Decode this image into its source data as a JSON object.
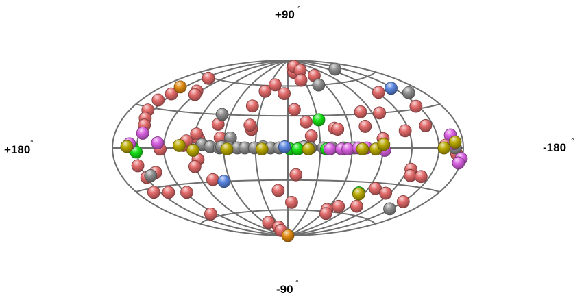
{
  "chart_data": {
    "type": "scatter",
    "projection": "Aitoff/Hammer all-sky, galactic coordinates",
    "longitude_range": [
      180,
      -180
    ],
    "latitude_range": [
      -90,
      90
    ],
    "grid": true,
    "labels": {
      "top": "+90",
      "bottom": "-90",
      "left": "+180",
      "right": "-180",
      "degree": "°"
    },
    "colors": {
      "red": "#e26a6a",
      "gray": "#8c8c8c",
      "green": "#16e016",
      "magenta": "#d860e0",
      "olive": "#b8a800",
      "blue": "#5a86e0",
      "orange": "#e08a10"
    },
    "points": [
      {
        "l": 64,
        "b": 9,
        "c": "red"
      },
      {
        "l": 143,
        "b": 59,
        "c": "red"
      },
      {
        "l": 152,
        "b": 42,
        "c": "red"
      },
      {
        "l": 32,
        "b": 54,
        "c": "red"
      },
      {
        "l": -20,
        "b": 80,
        "c": "red"
      },
      {
        "l": -17,
        "b": 75,
        "c": "red"
      },
      {
        "l": -30,
        "b": 82,
        "c": "red"
      },
      {
        "l": -40,
        "b": 77,
        "c": "red"
      },
      {
        "l": -60,
        "b": 70,
        "c": "red"
      },
      {
        "l": -25,
        "b": 66,
        "c": "red"
      },
      {
        "l": 21,
        "b": 61,
        "c": "red"
      },
      {
        "l": 5,
        "b": 52,
        "c": "red"
      },
      {
        "l": 125,
        "b": 48,
        "c": "red"
      },
      {
        "l": 121,
        "b": 45,
        "c": "red"
      },
      {
        "l": 158,
        "b": 36,
        "c": "red"
      },
      {
        "l": 157,
        "b": 28,
        "c": "red"
      },
      {
        "l": 152,
        "b": 22,
        "c": "red"
      },
      {
        "l": 40,
        "b": 39,
        "c": "red"
      },
      {
        "l": -7,
        "b": 36,
        "c": "red"
      },
      {
        "l": -78,
        "b": 32,
        "c": "red"
      },
      {
        "l": -98,
        "b": 30,
        "c": "red"
      },
      {
        "l": -147,
        "b": 32,
        "c": "red"
      },
      {
        "l": -18,
        "b": 24,
        "c": "red"
      },
      {
        "l": 35,
        "b": 17,
        "c": "red"
      },
      {
        "l": 37,
        "b": 21,
        "c": "red"
      },
      {
        "l": 69,
        "b": 21,
        "c": "red"
      },
      {
        "l": -22,
        "b": 11,
        "c": "red"
      },
      {
        "l": -45,
        "b": 18,
        "c": "red"
      },
      {
        "l": -48,
        "b": 17,
        "c": "red"
      },
      {
        "l": -76,
        "b": 19,
        "c": "red"
      },
      {
        "l": -116,
        "b": 14,
        "c": "red"
      },
      {
        "l": -141,
        "b": 17,
        "c": "red"
      },
      {
        "l": 148,
        "b": 17,
        "c": "red"
      },
      {
        "l": 85,
        "b": 8,
        "c": "red"
      },
      {
        "l": 88,
        "b": 12,
        "c": "red"
      },
      {
        "l": 124,
        "b": -1,
        "c": "red"
      },
      {
        "l": 86,
        "b": -10,
        "c": "red"
      },
      {
        "l": 91,
        "b": -16,
        "c": "red"
      },
      {
        "l": 153,
        "b": -13,
        "c": "red"
      },
      {
        "l": 136,
        "b": -19,
        "c": "red"
      },
      {
        "l": 150,
        "b": -22,
        "c": "red"
      },
      {
        "l": 78,
        "b": -28,
        "c": "red"
      },
      {
        "l": -8,
        "b": -25,
        "c": "red"
      },
      {
        "l": -124,
        "b": -17,
        "c": "red"
      },
      {
        "l": -127,
        "b": -22,
        "c": "red"
      },
      {
        "l": -140,
        "b": -22,
        "c": "red"
      },
      {
        "l": -172,
        "b": -4,
        "c": "red"
      },
      {
        "l": 158,
        "b": -33,
        "c": "red"
      },
      {
        "l": 140,
        "b": -35,
        "c": "red"
      },
      {
        "l": 118,
        "b": -37,
        "c": "red"
      },
      {
        "l": -98,
        "b": -35,
        "c": "red"
      },
      {
        "l": -115,
        "b": -38,
        "c": "red"
      },
      {
        "l": -150,
        "b": -42,
        "c": "red"
      },
      {
        "l": 11,
        "b": -40,
        "c": "red"
      },
      {
        "l": 128,
        "b": -57,
        "c": "red"
      },
      {
        "l": -5,
        "b": -52,
        "c": "red"
      },
      {
        "l": -61,
        "b": -58,
        "c": "red"
      },
      {
        "l": -73,
        "b": -54,
        "c": "red"
      },
      {
        "l": -98,
        "b": -52,
        "c": "red"
      },
      {
        "l": -66,
        "b": -62,
        "c": "red"
      },
      {
        "l": 50,
        "b": -73,
        "c": "red"
      },
      {
        "l": 35,
        "b": -79,
        "c": "red"
      },
      {
        "l": 40,
        "b": -83,
        "c": "red"
      },
      {
        "l": 100,
        "b": 2,
        "c": "red"
      },
      {
        "l": 97,
        "b": 6,
        "c": "red"
      },
      {
        "l": -122,
        "b": 47,
        "c": "red"
      },
      {
        "l": -91,
        "b": 8,
        "c": "red"
      },
      {
        "l": -158,
        "b": 2,
        "c": "red"
      },
      {
        "l": -134,
        "b": 72,
        "c": "gray"
      },
      {
        "l": -50,
        "b": 60,
        "c": "gray"
      },
      {
        "l": -160,
        "b": 42,
        "c": "gray"
      },
      {
        "l": 69,
        "b": 30,
        "c": "gray"
      },
      {
        "l": 54,
        "b": 9,
        "c": "gray"
      },
      {
        "l": -170,
        "b": 0,
        "c": "gray"
      },
      {
        "l": 144,
        "b": -21,
        "c": "gray"
      },
      {
        "l": -148,
        "b": -49,
        "c": "gray"
      },
      {
        "l": 81,
        "b": 3,
        "c": "gray"
      },
      {
        "l": 73,
        "b": 1,
        "c": "gray"
      },
      {
        "l": 64,
        "b": 0,
        "c": "gray"
      },
      {
        "l": 55,
        "b": 0,
        "c": "gray"
      },
      {
        "l": 47,
        "b": 0,
        "c": "gray"
      },
      {
        "l": 40,
        "b": 0,
        "c": "gray"
      },
      {
        "l": 31,
        "b": 0,
        "c": "gray"
      },
      {
        "l": 23,
        "b": 1,
        "c": "gray"
      },
      {
        "l": 16,
        "b": 0,
        "c": "gray"
      },
      {
        "l": 8,
        "b": 0,
        "c": "gray"
      },
      {
        "l": -11,
        "b": 0,
        "c": "gray"
      },
      {
        "l": -21,
        "b": 0,
        "c": "gray"
      },
      {
        "l": -33,
        "b": 0,
        "c": "gray"
      },
      {
        "l": -41,
        "b": 0,
        "c": "gray"
      },
      {
        "l": -52,
        "b": 0,
        "c": "gray"
      },
      {
        "l": -15,
        "b": 1,
        "c": "gray"
      },
      {
        "l": -62,
        "b": 0,
        "c": "gray"
      },
      {
        "l": 62,
        "b": 1,
        "c": "gray"
      },
      {
        "l": -31,
        "b": 26,
        "c": "green"
      },
      {
        "l": 155,
        "b": 0,
        "c": "green"
      },
      {
        "l": 151,
        "b": -3,
        "c": "green"
      },
      {
        "l": -2,
        "b": -1,
        "c": "green"
      },
      {
        "l": -9,
        "b": -1,
        "c": "green"
      },
      {
        "l": -36,
        "b": -1,
        "c": "green"
      },
      {
        "l": -54,
        "b": -1,
        "c": "green"
      },
      {
        "l": -90,
        "b": 0,
        "c": "green"
      },
      {
        "l": -168,
        "b": 3,
        "c": "green"
      },
      {
        "l": -83,
        "b": -40,
        "c": "green"
      },
      {
        "l": 146,
        "b": 11,
        "c": "magenta"
      },
      {
        "l": 159,
        "b": 3,
        "c": "magenta"
      },
      {
        "l": 127,
        "b": 4,
        "c": "magenta"
      },
      {
        "l": -39,
        "b": -1,
        "c": "magenta"
      },
      {
        "l": -50,
        "b": -1,
        "c": "magenta"
      },
      {
        "l": -56,
        "b": -1,
        "c": "magenta"
      },
      {
        "l": -66,
        "b": 0,
        "c": "magenta"
      },
      {
        "l": -74,
        "b": 0,
        "c": "magenta"
      },
      {
        "l": -92,
        "b": -2,
        "c": "magenta"
      },
      {
        "l": -166,
        "b": 9,
        "c": "magenta"
      },
      {
        "l": -168,
        "b": 3,
        "c": "magenta"
      },
      {
        "l": -179,
        "b": -7,
        "c": "magenta"
      },
      {
        "l": -177,
        "b": -10,
        "c": "magenta"
      },
      {
        "l": 162,
        "b": 1,
        "c": "olive"
      },
      {
        "l": 104,
        "b": 2,
        "c": "olive"
      },
      {
        "l": 90,
        "b": -2,
        "c": "olive"
      },
      {
        "l": 57,
        "b": -1,
        "c": "olive"
      },
      {
        "l": 24,
        "b": -1,
        "c": "olive"
      },
      {
        "l": -19,
        "b": -1,
        "c": "olive"
      },
      {
        "l": -70,
        "b": -1,
        "c": "olive"
      },
      {
        "l": -83,
        "b": -1,
        "c": "olive"
      },
      {
        "l": -91,
        "b": 3,
        "c": "olive"
      },
      {
        "l": -156,
        "b": 0,
        "c": "olive"
      },
      {
        "l": -170,
        "b": 4,
        "c": "olive"
      },
      {
        "l": -84,
        "b": -41,
        "c": "olive"
      },
      {
        "l": -147,
        "b": 48,
        "c": "blue"
      },
      {
        "l": 67,
        "b": -30,
        "c": "blue"
      },
      {
        "l": 3,
        "b": 1,
        "c": "blue"
      },
      {
        "l": 156,
        "b": 48,
        "c": "orange"
      },
      {
        "l": 0,
        "b": -90,
        "c": "orange"
      }
    ]
  }
}
